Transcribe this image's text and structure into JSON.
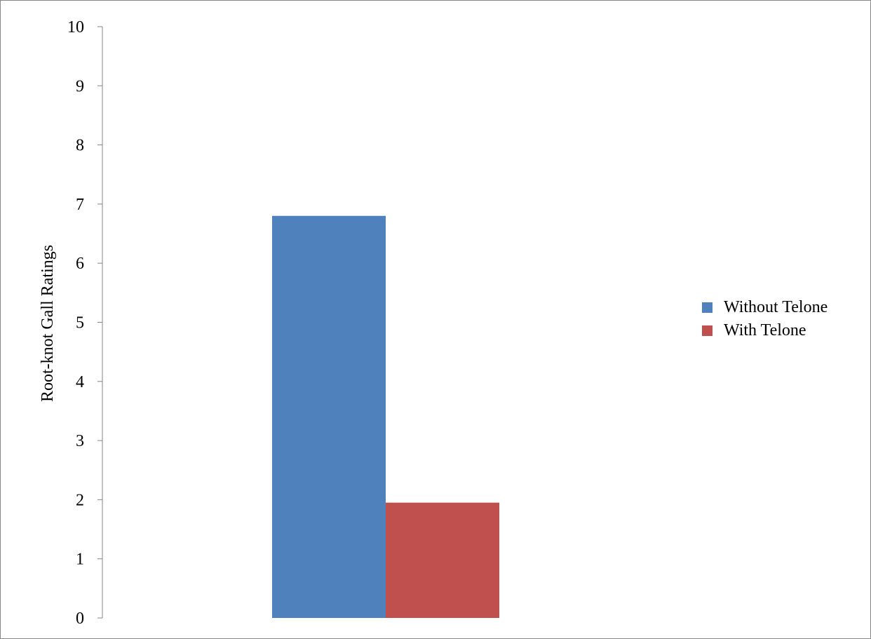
{
  "chart_data": {
    "type": "bar",
    "title": "",
    "xlabel": "",
    "ylabel": "Root-knot Gall Ratings",
    "ylim": [
      0,
      10
    ],
    "yticks": [
      0,
      1,
      2,
      3,
      4,
      5,
      6,
      7,
      8,
      9,
      10
    ],
    "categories": [
      ""
    ],
    "series": [
      {
        "name": "Without Telone",
        "values": [
          6.8
        ],
        "color": "#4F81BD"
      },
      {
        "name": "With Telone",
        "values": [
          1.95
        ],
        "color": "#C0504D"
      }
    ],
    "grid": false,
    "legend_position": "right"
  }
}
